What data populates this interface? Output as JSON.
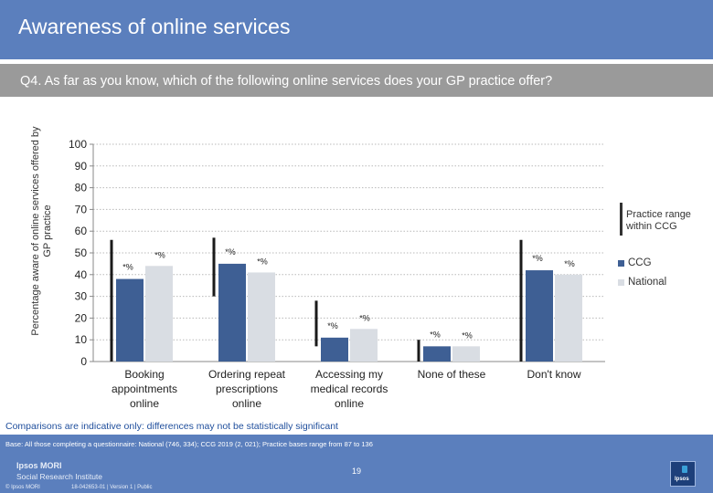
{
  "header": {
    "title": "Awareness of online services"
  },
  "question": "Q4. As far as you know, which of the following online services does your GP practice offer?",
  "colors": {
    "header_bg": "#5b7fbd",
    "question_bg": "#9a9a9a",
    "ccg": "#3e5f94",
    "national": "#d9dde3",
    "range": "#1a1a1a",
    "note": "#1f4e9c"
  },
  "chart_data": {
    "type": "bar",
    "ylabel": "Percentage aware of online services offered by GP practice",
    "ylim": [
      0,
      100
    ],
    "yticks": [
      0,
      10,
      20,
      30,
      40,
      50,
      60,
      70,
      80,
      90,
      100
    ],
    "grid": true,
    "legend_position": "right",
    "categories": [
      [
        "Booking",
        "appointments",
        "online"
      ],
      [
        "Ordering repeat",
        "prescriptions",
        "online"
      ],
      [
        "Accessing my",
        "medical records",
        "online"
      ],
      [
        "None of these"
      ],
      [
        "Don't know"
      ]
    ],
    "series": [
      {
        "name": "CCG",
        "values": [
          38,
          45,
          11,
          7,
          42
        ],
        "labels": [
          "*%",
          "*%",
          "*%",
          "*%",
          "*%"
        ]
      },
      {
        "name": "National",
        "values": [
          44,
          41,
          15,
          7,
          40
        ],
        "labels": [
          "*%",
          "*%",
          "*%",
          "*%",
          "*%"
        ]
      }
    ],
    "range": {
      "name": "Practice range within CCG",
      "lows": [
        0,
        30,
        7,
        0,
        0
      ],
      "highs": [
        56,
        57,
        28,
        10,
        56
      ]
    }
  },
  "note": "Comparisons are indicative only: differences may not be statistically significant",
  "footer": {
    "base": "Base: All those completing a questionnaire: National (746, 334); CCG 2019 (2, 021); Practice bases range from 87 to 136",
    "page": "19",
    "logo_line1": "Ipsos MORI",
    "logo_line2": "Social Research Institute",
    "copyright": "© Ipsos MORI",
    "ref": "18-042653-01 | Version 1 | Public",
    "brand_word": "Ipsos"
  }
}
